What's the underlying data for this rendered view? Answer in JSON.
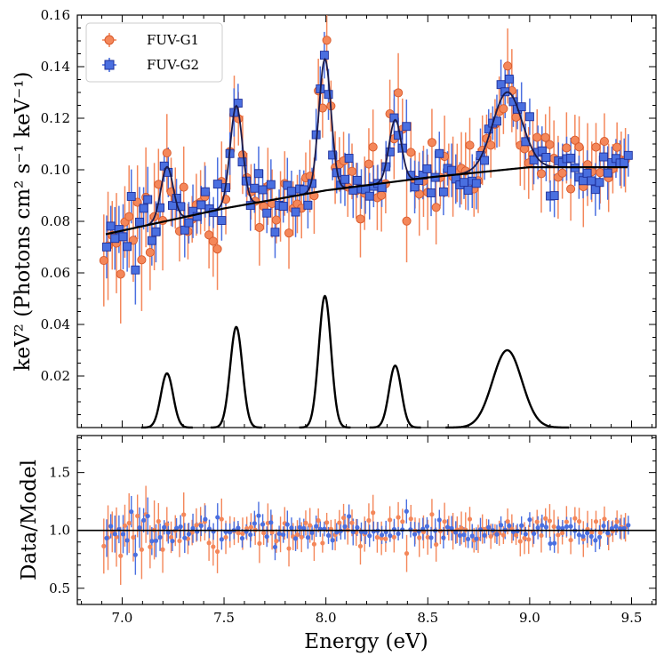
{
  "chart_data": [
    {
      "type": "scatter",
      "panel": "top",
      "xlabel": "",
      "ylabel": "keV² (Photons cm² s⁻¹ keV⁻¹)",
      "xlim": [
        6.78,
        9.62
      ],
      "ylim": [
        0.0,
        0.16
      ],
      "yticks": [
        0.02,
        0.04,
        0.06,
        0.08,
        0.1,
        0.12,
        0.14,
        0.16
      ],
      "ytick_labels": [
        "0.02",
        "0.04",
        "0.06",
        "0.08",
        "0.10",
        "0.12",
        "0.14",
        "0.16"
      ],
      "grid": false,
      "legend": "top-left",
      "series": [
        {
          "name": "FUV-G1",
          "color": "#f4875a",
          "marker": "circle",
          "x_range": [
            6.91,
            9.47
          ],
          "typical_error": 0.012
        },
        {
          "name": "FUV-G2",
          "color": "#4a6fe0",
          "marker": "square",
          "x_range": [
            6.92,
            9.48
          ],
          "typical_error": 0.008
        }
      ],
      "continuum": {
        "description": "smooth rising continuum",
        "points": [
          [
            6.92,
            0.075
          ],
          [
            7.5,
            0.085
          ],
          [
            8.0,
            0.092
          ],
          [
            8.5,
            0.097
          ],
          [
            9.0,
            0.101
          ],
          [
            9.48,
            0.101
          ]
        ]
      },
      "lines": [
        {
          "center": 7.22,
          "sigma": 0.03,
          "amplitude": 0.021
        },
        {
          "center": 7.56,
          "sigma": 0.03,
          "amplitude": 0.039
        },
        {
          "center": 7.995,
          "sigma": 0.03,
          "amplitude": 0.051
        },
        {
          "center": 8.34,
          "sigma": 0.03,
          "amplitude": 0.024
        },
        {
          "center": 8.89,
          "sigma": 0.072,
          "amplitude": 0.03
        }
      ]
    },
    {
      "type": "scatter",
      "panel": "bottom",
      "xlabel": "Energy (eV)",
      "ylabel": "Data/Model",
      "xlim": [
        6.78,
        9.62
      ],
      "ylim": [
        0.36,
        1.82
      ],
      "yticks": [
        0.5,
        1.0,
        1.5
      ],
      "ytick_labels": [
        "0.5",
        "1.0",
        "1.5"
      ],
      "xticks": [
        7.0,
        7.5,
        8.0,
        8.5,
        9.0,
        9.5
      ],
      "xtick_labels": [
        "7.0",
        "7.5",
        "8.0",
        "8.5",
        "9.0",
        "9.5"
      ],
      "reference_line": 1.0,
      "grid": false
    }
  ]
}
